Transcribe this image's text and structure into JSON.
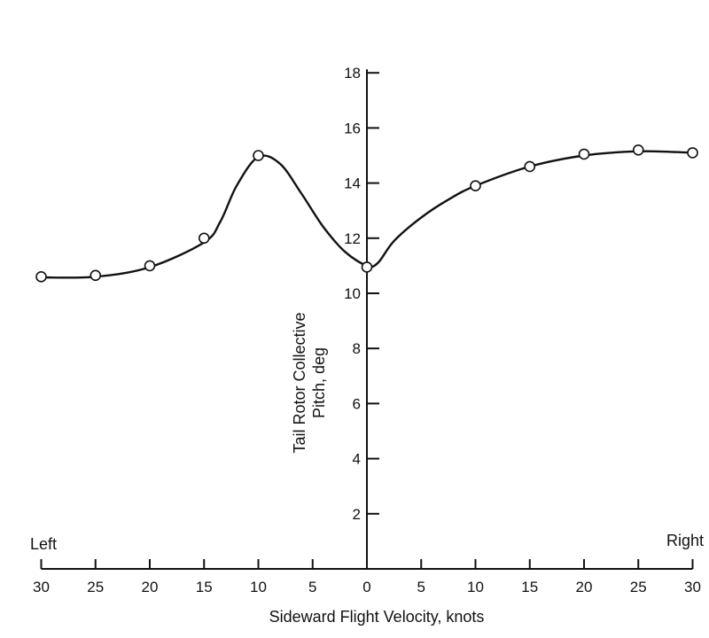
{
  "chart_data": {
    "type": "line",
    "title": "",
    "xlabel": "Sideward Flight Velocity, knots",
    "ylabel_line1": "Tail Rotor Collective",
    "ylabel_line2": "Pitch, deg",
    "left_label": "Left",
    "right_label": "Right",
    "x_note": "negative x = Left sideward flight, positive x = Right",
    "xlim": [
      -30,
      30
    ],
    "ylim": [
      0,
      18
    ],
    "x_ticks": [
      -30,
      -25,
      -20,
      -15,
      -10,
      -5,
      0,
      5,
      10,
      15,
      20,
      25,
      30
    ],
    "x_tick_labels": [
      "30",
      "25",
      "20",
      "15",
      "10",
      "5",
      "0",
      "5",
      "10",
      "15",
      "20",
      "25",
      "30"
    ],
    "y_ticks": [
      2,
      4,
      6,
      8,
      10,
      12,
      14,
      16,
      18
    ],
    "y_tick_labels": [
      "2",
      "4",
      "6",
      "8",
      "10",
      "12",
      "14",
      "16",
      "18"
    ],
    "series": [
      {
        "name": "Tail Rotor Collective Pitch",
        "points": [
          {
            "x": -30,
            "y": 10.6
          },
          {
            "x": -25,
            "y": 10.65
          },
          {
            "x": -20,
            "y": 11.0
          },
          {
            "x": -15,
            "y": 12.0
          },
          {
            "x": -10,
            "y": 15.0
          },
          {
            "x": 0,
            "y": 10.95
          },
          {
            "x": 10,
            "y": 13.9
          },
          {
            "x": 15,
            "y": 14.6
          },
          {
            "x": 20,
            "y": 15.05
          },
          {
            "x": 25,
            "y": 15.2
          },
          {
            "x": 30,
            "y": 15.1
          }
        ],
        "curve": [
          {
            "x": -30,
            "y": 10.58
          },
          {
            "x": -25,
            "y": 10.6
          },
          {
            "x": -20,
            "y": 10.95
          },
          {
            "x": -15,
            "y": 11.85
          },
          {
            "x": -13.5,
            "y": 12.6
          },
          {
            "x": -12,
            "y": 13.9
          },
          {
            "x": -10,
            "y": 14.95
          },
          {
            "x": -8,
            "y": 14.7
          },
          {
            "x": -6,
            "y": 13.6
          },
          {
            "x": -4,
            "y": 12.4
          },
          {
            "x": -2,
            "y": 11.5
          },
          {
            "x": 0,
            "y": 11.0
          },
          {
            "x": 1,
            "y": 11.1
          },
          {
            "x": 2.5,
            "y": 11.9
          },
          {
            "x": 5,
            "y": 12.75
          },
          {
            "x": 7.5,
            "y": 13.4
          },
          {
            "x": 10,
            "y": 13.9
          },
          {
            "x": 15,
            "y": 14.6
          },
          {
            "x": 20,
            "y": 15.0
          },
          {
            "x": 25,
            "y": 15.15
          },
          {
            "x": 30,
            "y": 15.1
          }
        ]
      }
    ]
  }
}
